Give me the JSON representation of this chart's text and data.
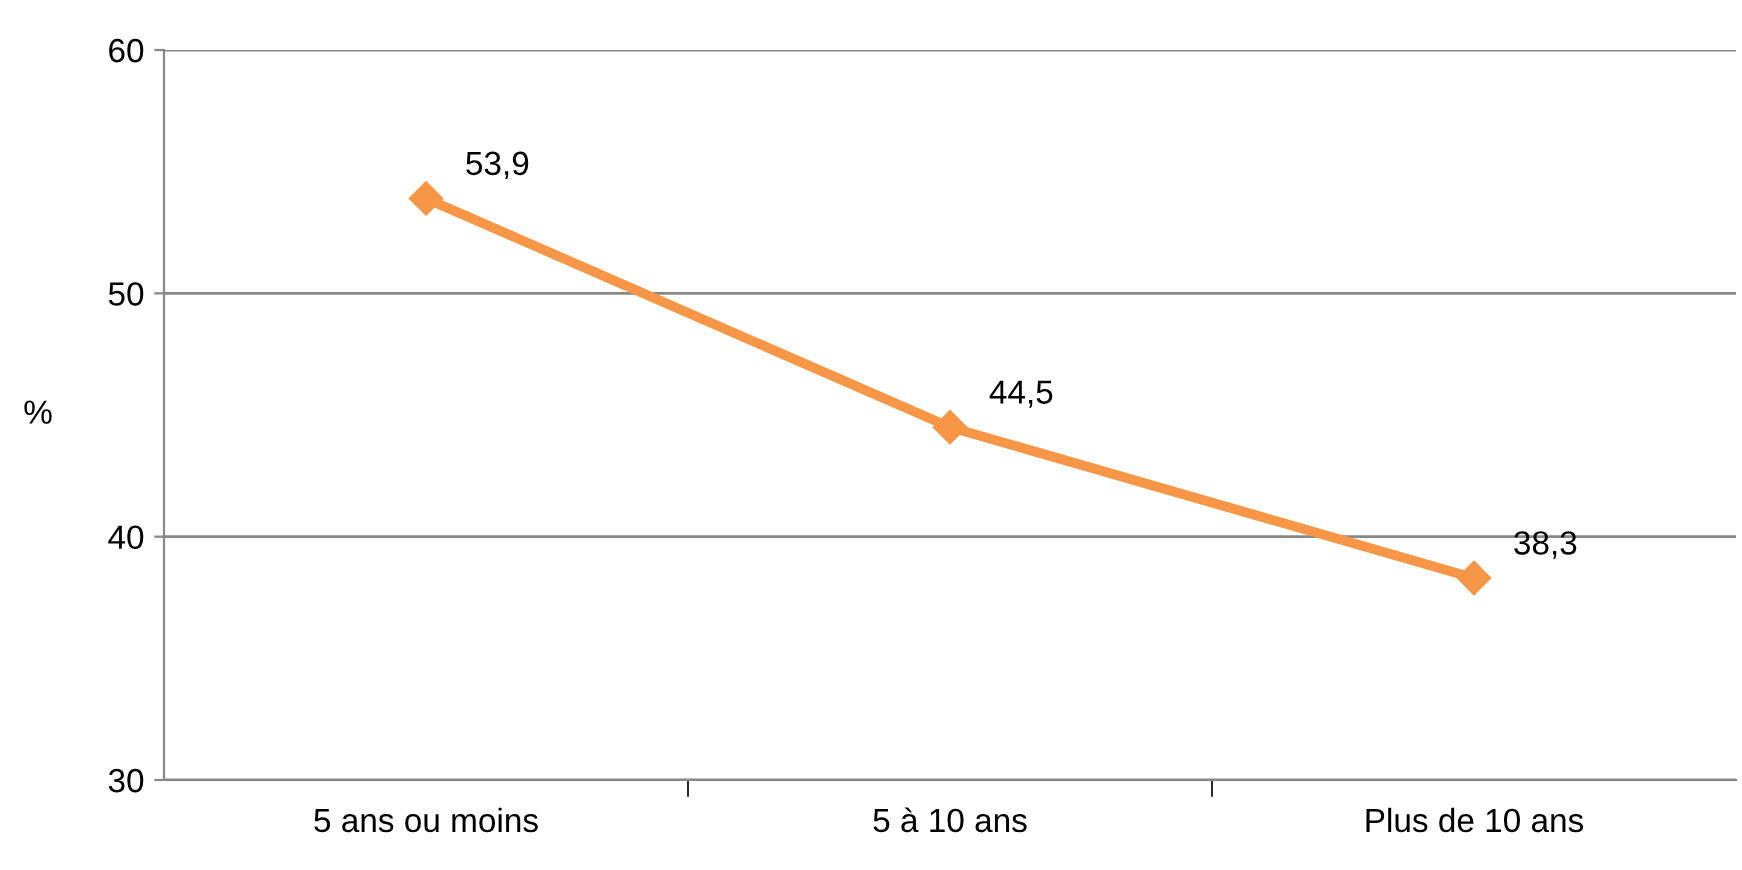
{
  "chart_data": {
    "type": "line",
    "ylabel": "%",
    "categories": [
      "5 ans ou moins",
      "5 à 10 ans",
      "Plus de 10 ans"
    ],
    "series": [
      {
        "color": "#f79646",
        "values": [
          53.9,
          44.5,
          38.3
        ],
        "value_labels": [
          "53,9",
          "44,5",
          "38,3"
        ]
      }
    ],
    "ylim": [
      30,
      60
    ],
    "yticks": [
      30,
      40,
      50,
      60
    ],
    "grid": "y",
    "marker": "diamond",
    "line_style": "solid"
  }
}
